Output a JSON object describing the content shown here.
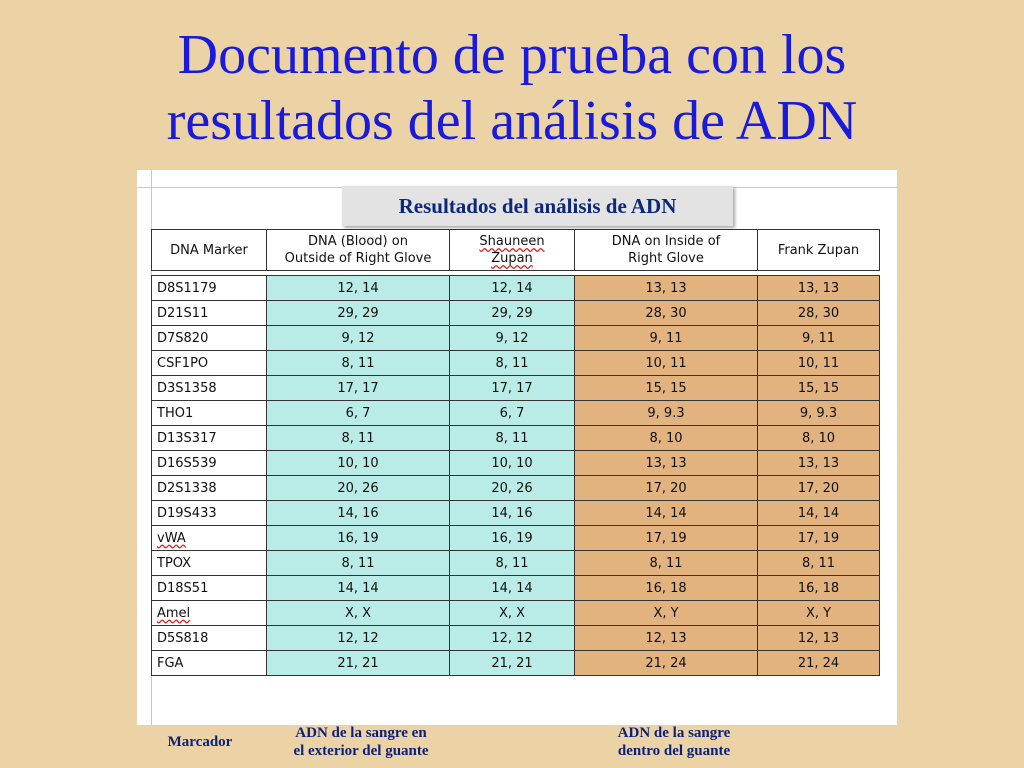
{
  "slide": {
    "title_line1": "Documento de prueba con los",
    "title_line2": "resultados del análisis de ADN"
  },
  "table": {
    "title": "Resultados del análisis de ADN",
    "headers": {
      "marker": "DNA Marker",
      "blood_line1": "DNA (Blood) on",
      "blood_line2": "Outside of Right Glove",
      "shauneen_line1": "Shauneen",
      "shauneen_line2": "Zupan",
      "inside_line1": "DNA on Inside of",
      "inside_line2": "Right Glove",
      "frank": "Frank Zupan"
    },
    "rows": [
      {
        "marker": "D8S1179",
        "blood": "12, 14",
        "shauneen": "12, 14",
        "inside": "13, 13",
        "frank": "13, 13"
      },
      {
        "marker": "D21S11",
        "blood": "29, 29",
        "shauneen": "29, 29",
        "inside": "28, 30",
        "frank": "28, 30"
      },
      {
        "marker": "D7S820",
        "blood": "9, 12",
        "shauneen": "9, 12",
        "inside": "9, 11",
        "frank": "9, 11"
      },
      {
        "marker": "CSF1PO",
        "blood": "8, 11",
        "shauneen": "8, 11",
        "inside": "10, 11",
        "frank": "10, 11"
      },
      {
        "marker": "D3S1358",
        "blood": "17, 17",
        "shauneen": "17, 17",
        "inside": "15, 15",
        "frank": "15, 15"
      },
      {
        "marker": "THO1",
        "blood": "6, 7",
        "shauneen": "6, 7",
        "inside": "9, 9.3",
        "frank": "9, 9.3"
      },
      {
        "marker": "D13S317",
        "blood": "8, 11",
        "shauneen": "8, 11",
        "inside": "8, 10",
        "frank": "8, 10"
      },
      {
        "marker": "D16S539",
        "blood": "10, 10",
        "shauneen": "10, 10",
        "inside": "13, 13",
        "frank": "13, 13"
      },
      {
        "marker": "D2S1338",
        "blood": "20, 26",
        "shauneen": "20, 26",
        "inside": "17, 20",
        "frank": "17, 20"
      },
      {
        "marker": "D19S433",
        "blood": "14, 16",
        "shauneen": "14, 16",
        "inside": "14, 14",
        "frank": "14, 14"
      },
      {
        "marker": "vWA",
        "blood": "16, 19",
        "shauneen": "16, 19",
        "inside": "17, 19",
        "frank": "17, 19"
      },
      {
        "marker": "TPOX",
        "blood": "8, 11",
        "shauneen": "8, 11",
        "inside": "8, 11",
        "frank": "8, 11"
      },
      {
        "marker": "D18S51",
        "blood": "14, 14",
        "shauneen": "14, 14",
        "inside": "16, 18",
        "frank": "16, 18"
      },
      {
        "marker": "Amel",
        "blood": "X, X",
        "shauneen": "X, X",
        "inside": "X, Y",
        "frank": "X, Y"
      },
      {
        "marker": "D5S818",
        "blood": "12, 12",
        "shauneen": "12, 12",
        "inside": "12, 13",
        "frank": "12, 13"
      },
      {
        "marker": "FGA",
        "blood": "21, 21",
        "shauneen": "21, 21",
        "inside": "21, 24",
        "frank": "21, 24"
      }
    ]
  },
  "captions": {
    "marker": "Marcador",
    "outside_line1": "ADN de la sangre en",
    "outside_line2": "el exterior del guante",
    "inside_line1": "ADN de la sangre",
    "inside_line2": "dentro del guante"
  },
  "colors": {
    "background": "#ecd3a6",
    "title": "#1a1adc",
    "outside_glove_cells": "#b9ece6",
    "inside_glove_cells": "#e2b27f",
    "caption": "#0c1f7a"
  }
}
